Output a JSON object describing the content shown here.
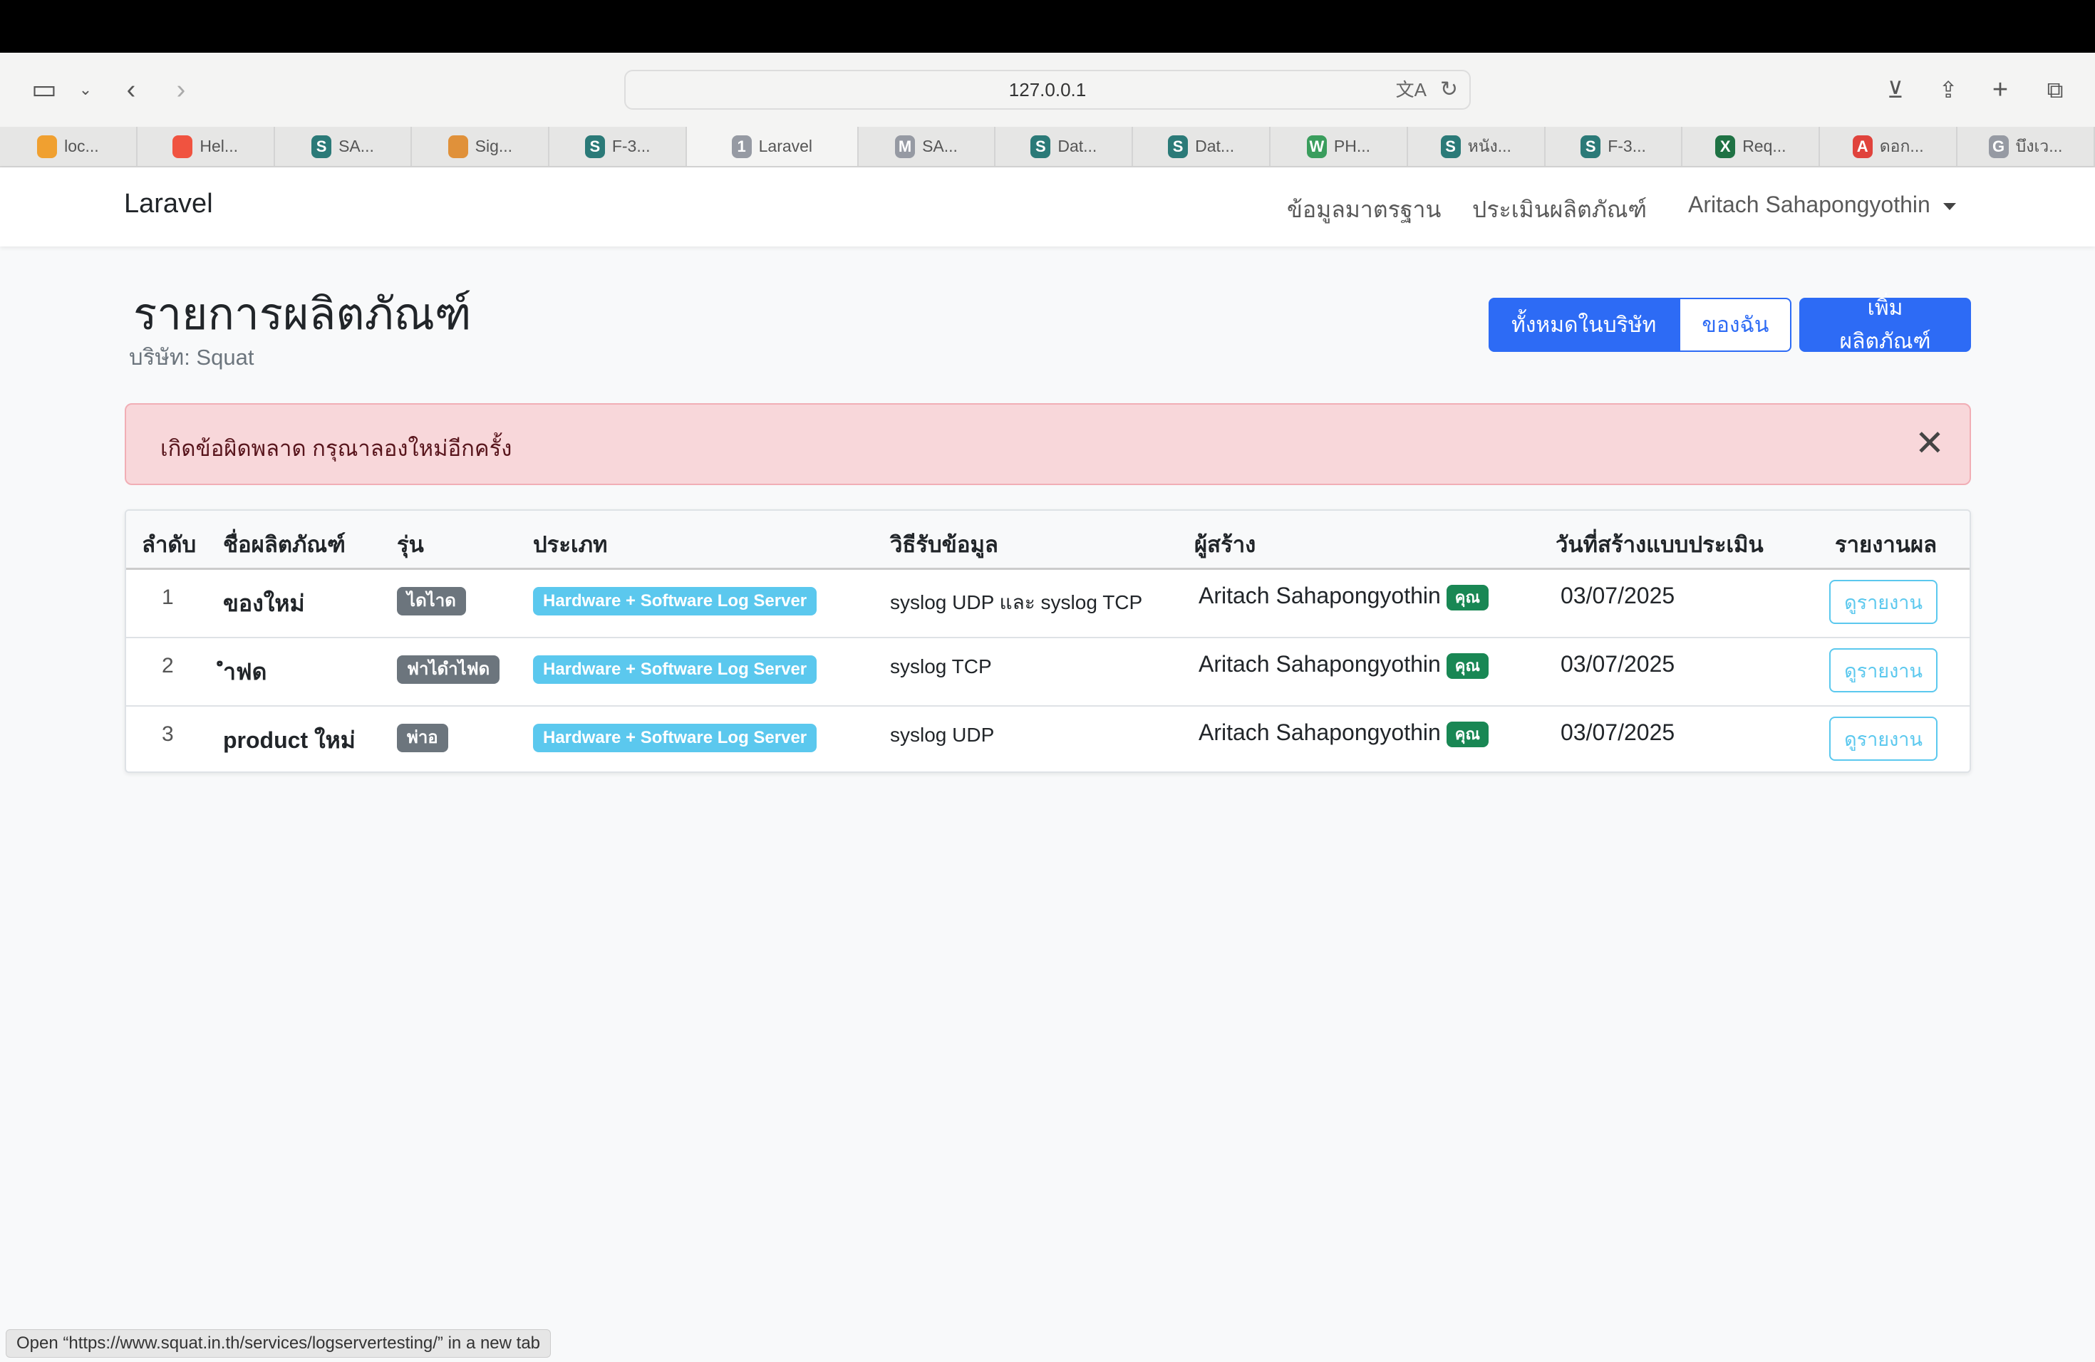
{
  "browser": {
    "url": "127.0.0.1",
    "tabs": [
      {
        "label": "loc...",
        "icon": "pma"
      },
      {
        "label": "Hel...",
        "icon": "laravel"
      },
      {
        "label": "SA...",
        "icon": "S"
      },
      {
        "label": "Sig...",
        "icon": "sig"
      },
      {
        "label": "F-3...",
        "icon": "S"
      },
      {
        "label": "Laravel",
        "icon": "1",
        "active": true
      },
      {
        "label": "SA...",
        "icon": "M"
      },
      {
        "label": "Dat...",
        "icon": "S"
      },
      {
        "label": "Dat...",
        "icon": "S"
      },
      {
        "label": "PH...",
        "icon": "W"
      },
      {
        "label": "หนัง...",
        "icon": "S"
      },
      {
        "label": "F-3...",
        "icon": "S"
      },
      {
        "label": "Req...",
        "icon": "X"
      },
      {
        "label": "ดอก...",
        "icon": "A"
      },
      {
        "label": "บึงเว...",
        "icon": "G"
      }
    ],
    "status_text": "Open “https://www.squat.in.th/services/logservertesting/” in a new tab"
  },
  "navbar": {
    "brand": "Laravel",
    "links": [
      "ข้อมูลมาตรฐาน",
      "ประเมินผลิตภัณฑ์"
    ],
    "user": "Aritach Sahapongyothin"
  },
  "page": {
    "title": "รายการผลิตภัณฑ์",
    "subtitle": "บริษัท: Squat",
    "filter_all": "ทั้งหมดในบริษัท",
    "filter_mine": "ของฉัน",
    "add_button": "เพิ่มผลิตภัณฑ์"
  },
  "alert": {
    "message": "เกิดข้อผิดพลาด กรุณาลองใหม่อีกครั้ง"
  },
  "table": {
    "headers": [
      "ลำดับ",
      "ชื่อผลิตภัณฑ์",
      "รุ่น",
      "ประเภท",
      "วิธีรับข้อมูล",
      "ผู้สร้าง",
      "วันที่สร้างแบบประเมิน",
      "รายงานผล"
    ],
    "rows": [
      {
        "no": "1",
        "name": "ของใหม่",
        "model": "ไดไาด",
        "type": "Hardware + Software Log Server",
        "method": "syslog UDP และ syslog TCP",
        "creator": "Aritach Sahapongyothin",
        "you": "คุณ",
        "date": "03/07/2025",
        "report": "ดูรายงาน"
      },
      {
        "no": "2",
        "name": "ำฟด",
        "model": "ฟาไดำไฟด",
        "type": "Hardware + Software Log Server",
        "method": "syslog TCP",
        "creator": "Aritach Sahapongyothin",
        "you": "คุณ",
        "date": "03/07/2025",
        "report": "ดูรายงาน"
      },
      {
        "no": "3",
        "name": "product ใหม่",
        "model": "พ่าอ",
        "type": "Hardware + Software Log Server",
        "method": "syslog UDP",
        "creator": "Aritach Sahapongyothin",
        "you": "คุณ",
        "date": "03/07/2025",
        "report": "ดูรายงาน"
      }
    ]
  },
  "colors": {
    "primary": "#2d6bf5",
    "info": "#5bc8ee",
    "success": "#198754",
    "secondary": "#6c757d",
    "alert_bg": "#f8d7da"
  }
}
